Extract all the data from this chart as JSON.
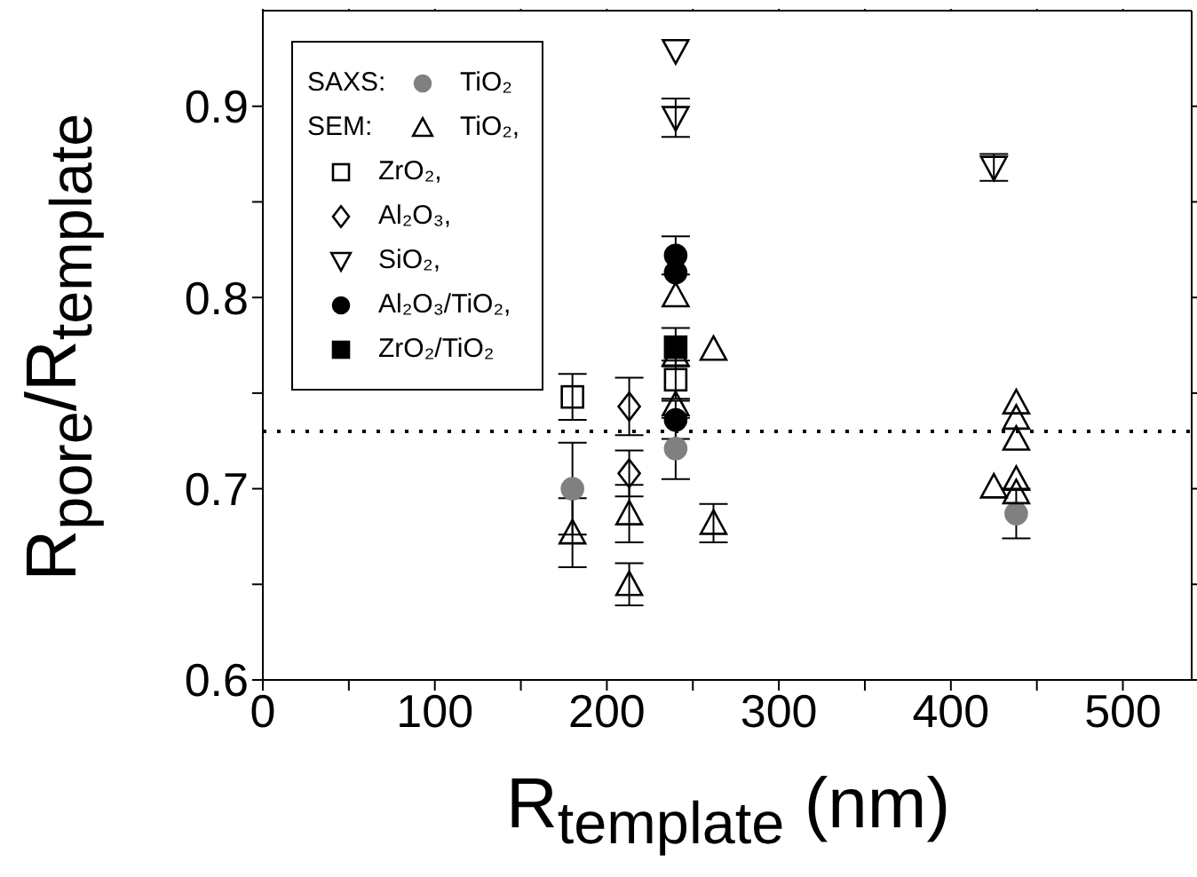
{
  "chart_data": {
    "type": "scatter",
    "xlabel": "R$_{template}$ (nm)",
    "ylabel": "R$_{pore}$/R$_{template}$",
    "xlim": [
      0,
      540
    ],
    "xticks": [
      0,
      {
        "value": 50,
        "label": null
      },
      100,
      {
        "value": 150,
        "label": null
      },
      200,
      {
        "value": 250,
        "label": null
      },
      300,
      {
        "value": 350,
        "label": null
      },
      400,
      {
        "value": 450,
        "label": null
      },
      500
    ],
    "ylim": [
      0.6,
      0.95
    ],
    "yticks": [
      0.6,
      {
        "value": 0.65,
        "label": null
      },
      0.7,
      {
        "value": 0.75,
        "label": null
      },
      0.8,
      {
        "value": 0.85,
        "label": null
      },
      0.9
    ],
    "legend": "top left",
    "annotations": [
      "SAXS:",
      "SEM:"
    ],
    "ref_lines": [
      {
        "axis": "y",
        "value": 0.73,
        "line_style": "dotted",
        "color": "#000000"
      }
    ],
    "series": [
      {
        "name": "TiO₂",
        "color": "#808080",
        "marker": "circle",
        "x": [
          180,
          240,
          438
        ],
        "values": [
          0.7,
          0.721,
          0.687
        ],
        "errors": [
          0.024,
          0.016,
          0.013
        ]
      },
      {
        "name": "TiO₂,",
        "color": "#000000",
        "marker": "triangle-open",
        "x": [
          180,
          213,
          213,
          240,
          240,
          240,
          262,
          262,
          425,
          438,
          438,
          438,
          438,
          438
        ],
        "values": [
          0.677,
          0.687,
          0.65,
          0.801,
          0.77,
          0.744,
          0.773,
          0.682,
          0.701,
          0.745,
          0.737,
          0.726,
          0.705,
          0.698
        ],
        "errors": [
          0.018,
          0.015,
          0.011,
          null,
          null,
          null,
          null,
          0.01,
          null,
          null,
          null,
          null,
          null,
          null
        ]
      },
      {
        "name": "ZrO₂,",
        "color": "#000000",
        "marker": "square-open",
        "x": [
          180,
          240
        ],
        "values": [
          0.748,
          0.757
        ],
        "errors": [
          0.012,
          0.01
        ]
      },
      {
        "name": "Al₂O₃,",
        "color": "#000000",
        "marker": "diamond-open",
        "x": [
          213,
          213
        ],
        "values": [
          0.743,
          0.708
        ],
        "errors": [
          0.015,
          0.012
        ]
      },
      {
        "name": "SiO₂,",
        "color": "#000000",
        "marker": "triangle-down-open",
        "x": [
          240,
          240,
          425
        ],
        "values": [
          0.929,
          0.894,
          0.868
        ],
        "errors": [
          null,
          0.01,
          0.007
        ]
      },
      {
        "name": "Al₂O₃/TiO₂,",
        "color": "#000000",
        "marker": "circle",
        "x": [
          240,
          240,
          240
        ],
        "values": [
          0.822,
          0.813,
          0.736
        ],
        "errors": [
          0.01,
          null,
          0.01
        ]
      },
      {
        "name": "ZrO₂/TiO₂",
        "color": "#000000",
        "marker": "square",
        "x": [
          240
        ],
        "values": [
          0.774
        ],
        "errors": [
          0.01
        ]
      }
    ]
  }
}
